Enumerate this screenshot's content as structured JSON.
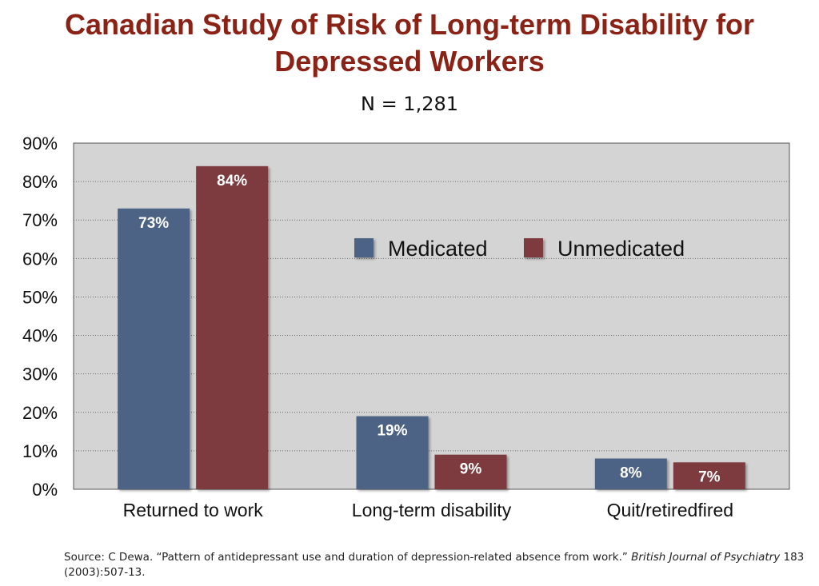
{
  "slide": {
    "title_line1": "Canadian Study of Risk of Long-term Disability for",
    "title_line2": "Depressed Workers",
    "subtitle": "N =  1,281",
    "source_prefix": "Source: C Dewa. “Pattern of antidepressant use and duration of depression-related absence from work.” ",
    "source_journal": "British Journal of Psychiatry",
    "source_suffix": " 183 (2003):507-13."
  },
  "chart_data": {
    "type": "bar",
    "title": "Canadian Study of Risk of Long-term Disability for Depressed Workers",
    "subtitle": "N =  1,281",
    "categories": [
      "Returned to work",
      "Long-term disability",
      "Quit/retiredfired"
    ],
    "series": [
      {
        "name": "Medicated",
        "values": [
          73,
          19,
          8
        ],
        "labels": [
          "73%",
          "19%",
          "8%"
        ],
        "color": "#4e6385"
      },
      {
        "name": "Unmedicated",
        "values": [
          84,
          9,
          7
        ],
        "labels": [
          "84%",
          "9%",
          "7%"
        ],
        "color": "#7d3a3f"
      }
    ],
    "ylim": [
      0,
      90
    ],
    "yticks": [
      0,
      10,
      20,
      30,
      40,
      50,
      60,
      70,
      80,
      90
    ],
    "ytick_labels": [
      "0%",
      "10%",
      "20%",
      "30%",
      "40%",
      "50%",
      "60%",
      "70%",
      "80%",
      "90%"
    ],
    "grid": true,
    "legend_position": "upper-right, horizontal",
    "plot_background": "#d4d4d4"
  }
}
